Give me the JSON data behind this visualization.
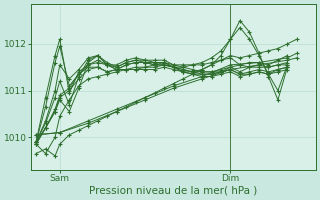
{
  "xlabel": "Pression niveau de la mer( hPa )",
  "bg_color": "#c8e8e0",
  "plot_bg_color": "#d8f0e8",
  "line_color": "#2d6e2d",
  "grid_color": "#b8dcd0",
  "ylim": [
    1009.3,
    1012.85
  ],
  "xlim": [
    -6,
    54
  ],
  "yticks": [
    1010,
    1011,
    1012
  ],
  "xtick_positions": [
    0,
    36
  ],
  "xtick_labels": [
    "Sam",
    "Dim"
  ],
  "vline_x": 36,
  "series": [
    [
      -5,
      1009.65,
      -3,
      1009.75,
      -1,
      1009.6,
      0,
      1009.85,
      2,
      1010.05,
      4,
      1010.15,
      6,
      1010.25,
      8,
      1010.35,
      10,
      1010.45,
      12,
      1010.55,
      14,
      1010.65,
      16,
      1010.75,
      18,
      1010.85,
      20,
      1010.95,
      22,
      1011.05,
      24,
      1011.15,
      26,
      1011.25,
      28,
      1011.35,
      30,
      1011.45,
      32,
      1011.55,
      34,
      1011.65,
      36,
      1011.75,
      38,
      1011.7,
      40,
      1011.75,
      42,
      1011.8,
      44,
      1011.85,
      46,
      1011.9,
      48,
      1012.0,
      50,
      1012.1
    ],
    [
      -5,
      1010.05,
      0,
      1010.1,
      6,
      1010.3,
      12,
      1010.55,
      18,
      1010.8,
      24,
      1011.05,
      30,
      1011.25,
      36,
      1011.45,
      42,
      1011.55,
      48,
      1011.65,
      50,
      1011.7
    ],
    [
      -5,
      1010.05,
      0,
      1010.1,
      6,
      1010.35,
      12,
      1010.6,
      18,
      1010.85,
      24,
      1011.1,
      30,
      1011.3,
      36,
      1011.55,
      42,
      1011.6,
      48,
      1011.7,
      50,
      1011.8
    ],
    [
      -5,
      1009.85,
      -3,
      1009.65,
      -1,
      1010.0,
      0,
      1010.45,
      2,
      1010.8,
      4,
      1011.1,
      6,
      1011.25,
      8,
      1011.3,
      10,
      1011.35,
      12,
      1011.4,
      14,
      1011.45,
      16,
      1011.5,
      18,
      1011.5,
      20,
      1011.5,
      22,
      1011.55,
      24,
      1011.5,
      26,
      1011.5,
      28,
      1011.55,
      30,
      1011.55,
      32,
      1011.6,
      34,
      1011.65,
      36,
      1011.7,
      38,
      1011.55,
      40,
      1011.6,
      42,
      1011.6,
      44,
      1011.55,
      46,
      1011.65,
      48,
      1011.75
    ],
    [
      -5,
      1009.9,
      -3,
      1010.2,
      -1,
      1010.55,
      0,
      1010.8,
      2,
      1010.55,
      4,
      1011.05,
      6,
      1011.6,
      8,
      1011.75,
      10,
      1011.55,
      12,
      1011.55,
      14,
      1011.65,
      16,
      1011.7,
      18,
      1011.65,
      20,
      1011.6,
      22,
      1011.6,
      24,
      1011.5,
      26,
      1011.45,
      28,
      1011.4,
      30,
      1011.4,
      32,
      1011.4,
      34,
      1011.45,
      36,
      1011.5,
      38,
      1011.55,
      40,
      1011.5,
      42,
      1011.55,
      44,
      1011.5,
      46,
      1011.55,
      48,
      1011.6
    ],
    [
      -5,
      1009.9,
      -3,
      1010.3,
      -1,
      1010.85,
      0,
      1011.2,
      2,
      1010.7,
      4,
      1011.3,
      6,
      1011.65,
      8,
      1011.75,
      10,
      1011.55,
      12,
      1011.5,
      14,
      1011.6,
      16,
      1011.65,
      18,
      1011.6,
      20,
      1011.6,
      22,
      1011.6,
      24,
      1011.5,
      26,
      1011.45,
      28,
      1011.4,
      30,
      1011.35,
      32,
      1011.35,
      34,
      1011.4,
      36,
      1011.5,
      38,
      1011.4,
      40,
      1011.5,
      42,
      1011.5,
      44,
      1011.5,
      46,
      1011.55,
      48,
      1011.55
    ],
    [
      -5,
      1009.9,
      -3,
      1010.35,
      -1,
      1011.0,
      0,
      1011.55,
      2,
      1011.25,
      4,
      1011.45,
      6,
      1011.7,
      8,
      1011.75,
      10,
      1011.6,
      12,
      1011.5,
      14,
      1011.6,
      16,
      1011.65,
      18,
      1011.65,
      20,
      1011.65,
      22,
      1011.65,
      24,
      1011.55,
      26,
      1011.5,
      28,
      1011.45,
      30,
      1011.4,
      32,
      1011.4,
      34,
      1011.4,
      36,
      1011.45,
      38,
      1011.35,
      40,
      1011.4,
      42,
      1011.45,
      44,
      1011.4,
      46,
      1011.45,
      48,
      1011.5
    ],
    [
      -5,
      1009.9,
      -3,
      1010.65,
      -1,
      1011.6,
      0,
      1011.95,
      2,
      1011.1,
      4,
      1011.35,
      6,
      1011.55,
      8,
      1011.6,
      10,
      1011.55,
      12,
      1011.45,
      14,
      1011.55,
      16,
      1011.6,
      18,
      1011.6,
      20,
      1011.55,
      22,
      1011.55,
      24,
      1011.5,
      26,
      1011.4,
      28,
      1011.35,
      30,
      1011.3,
      32,
      1011.3,
      34,
      1011.35,
      36,
      1011.4,
      38,
      1011.3,
      40,
      1011.35,
      42,
      1011.4,
      44,
      1011.35,
      46,
      1011.4,
      48,
      1011.45
    ],
    [
      -5,
      1009.9,
      -3,
      1010.85,
      -1,
      1011.75,
      0,
      1012.1,
      2,
      1010.95,
      4,
      1011.4,
      6,
      1011.55,
      8,
      1011.65,
      10,
      1011.55,
      12,
      1011.45,
      14,
      1011.55,
      16,
      1011.6,
      18,
      1011.6,
      20,
      1011.55,
      22,
      1011.55,
      24,
      1011.5,
      26,
      1011.4,
      28,
      1011.35,
      30,
      1011.35,
      32,
      1011.35,
      34,
      1011.4,
      36,
      1011.45,
      38,
      1011.35,
      40,
      1011.35,
      42,
      1011.4,
      44,
      1011.35,
      46,
      1011.45,
      48,
      1011.5
    ],
    [
      -5,
      1009.85,
      -3,
      1010.2,
      -1,
      1010.6,
      0,
      1010.9,
      2,
      1011.05,
      4,
      1011.35,
      6,
      1011.5,
      8,
      1011.5,
      10,
      1011.4,
      12,
      1011.45,
      14,
      1011.45,
      16,
      1011.45,
      18,
      1011.45,
      20,
      1011.45,
      22,
      1011.5,
      24,
      1011.45,
      26,
      1011.4,
      28,
      1011.4,
      30,
      1011.45,
      32,
      1011.55,
      34,
      1011.75,
      36,
      1012.1,
      38,
      1012.5,
      40,
      1012.25,
      42,
      1011.8,
      44,
      1011.3,
      46,
      1010.8,
      48,
      1011.5
    ],
    [
      -5,
      1009.85,
      -3,
      1010.2,
      -1,
      1010.55,
      0,
      1010.85,
      2,
      1011.0,
      4,
      1011.25,
      6,
      1011.45,
      8,
      1011.5,
      10,
      1011.4,
      12,
      1011.45,
      14,
      1011.45,
      16,
      1011.45,
      18,
      1011.5,
      20,
      1011.55,
      22,
      1011.6,
      24,
      1011.55,
      26,
      1011.55,
      28,
      1011.55,
      30,
      1011.6,
      32,
      1011.7,
      34,
      1011.85,
      36,
      1012.1,
      38,
      1012.35,
      40,
      1012.1,
      42,
      1011.75,
      44,
      1011.35,
      46,
      1011.0,
      48,
      1011.55
    ]
  ]
}
